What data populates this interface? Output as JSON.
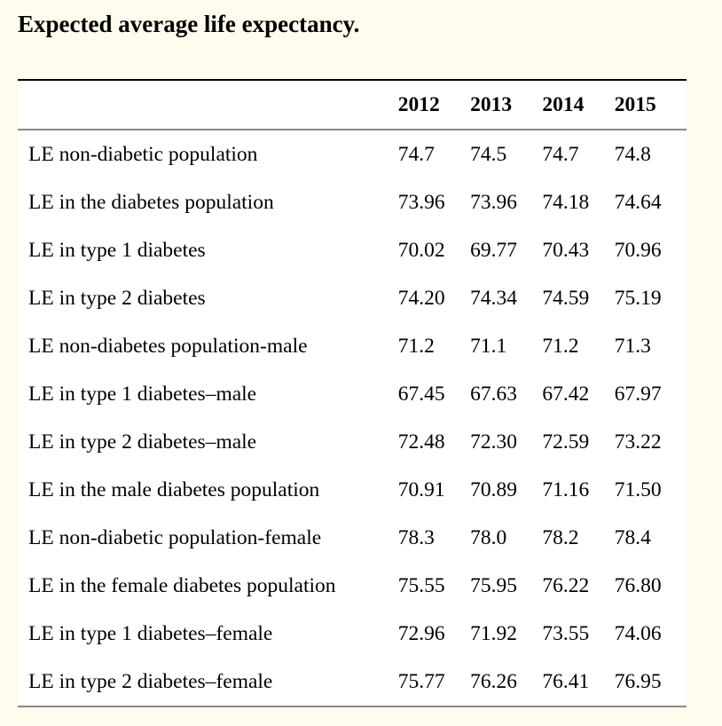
{
  "title": "Expected average life expectancy.",
  "columns": [
    "2012",
    "2013",
    "2014",
    "2015"
  ],
  "rows": [
    {
      "label": "LE non-diabetic population",
      "values": [
        "74.7",
        "74.5",
        "74.7",
        "74.8"
      ]
    },
    {
      "label": "LE in the diabetes population",
      "values": [
        "73.96",
        "73.96",
        "74.18",
        "74.64"
      ]
    },
    {
      "label": "LE in type 1 diabetes",
      "values": [
        "70.02",
        "69.77",
        "70.43",
        "70.96"
      ]
    },
    {
      "label": "LE in type 2 diabetes",
      "values": [
        "74.20",
        "74.34",
        "74.59",
        "75.19"
      ]
    },
    {
      "label": "LE non-diabetes population-male",
      "values": [
        "71.2",
        "71.1",
        "71.2",
        "71.3"
      ]
    },
    {
      "label": "LE in type 1 diabetes–male",
      "values": [
        "67.45",
        "67.63",
        "67.42",
        "67.97"
      ]
    },
    {
      "label": "LE in type 2 diabetes–male",
      "values": [
        "72.48",
        "72.30",
        "72.59",
        "73.22"
      ]
    },
    {
      "label": "LE in the male diabetes population",
      "values": [
        "70.91",
        "70.89",
        "71.16",
        "71.50"
      ]
    },
    {
      "label": "LE non-diabetic population-female",
      "values": [
        "78.3",
        "78.0",
        "78.2",
        "78.4"
      ]
    },
    {
      "label": "LE in the female diabetes population",
      "values": [
        "75.55",
        "75.95",
        "76.22",
        "76.80"
      ]
    },
    {
      "label": "LE in type 1 diabetes–female",
      "values": [
        "72.96",
        "71.92",
        "73.55",
        "74.06"
      ]
    },
    {
      "label": "LE in type 2 diabetes–female",
      "values": [
        "75.77",
        "76.26",
        "76.41",
        "76.95"
      ]
    }
  ]
}
